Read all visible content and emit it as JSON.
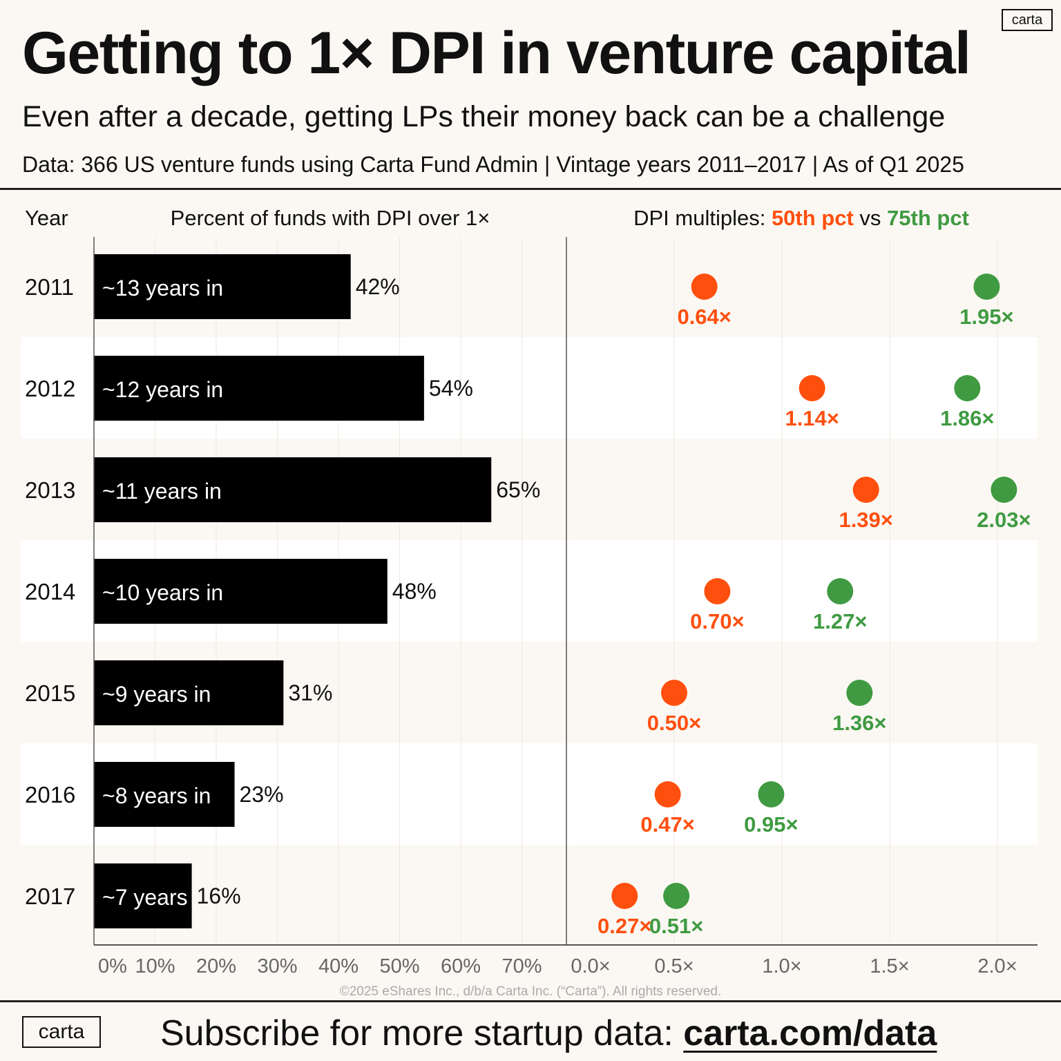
{
  "header": {
    "title": "Getting to 1× DPI in venture capital",
    "subtitle": "Even after a decade, getting LPs their money back can be a challenge",
    "dataline": "Data: 366 US venture funds using Carta Fund Admin  |  Vintage years 2011–2017  |  As of Q1 2025",
    "logo": "carta"
  },
  "footer": {
    "logo": "carta",
    "text": "Subscribe for more startup data: ",
    "link": "carta.com/data",
    "copyright": "©2025 eShares Inc., d/b/a Carta Inc. (“Carta”). All rights reserved."
  },
  "colors": {
    "p50": "#ff4f0f",
    "p75": "#3f9a41",
    "bar": "#000000",
    "band": "#ffffff"
  },
  "chart_data": [
    {
      "type": "bar",
      "orientation": "horizontal",
      "year_header": "Year",
      "title": "Percent of funds with DPI over 1×",
      "categories": [
        "2011",
        "2012",
        "2013",
        "2014",
        "2015",
        "2016",
        "2017"
      ],
      "bar_labels": [
        "~13 years in",
        "~12 years in",
        "~11 years in",
        "~10 years in",
        "~9 years in",
        "~8 years in",
        "~7 years"
      ],
      "values": [
        42,
        54,
        65,
        48,
        31,
        23,
        16
      ],
      "value_suffix": "%",
      "xlim": [
        0,
        75
      ],
      "ticks": [
        0,
        10,
        20,
        30,
        40,
        50,
        60,
        70
      ],
      "tick_labels": [
        "0%",
        "10%",
        "20%",
        "30%",
        "40%",
        "50%",
        "60%",
        "70%"
      ]
    },
    {
      "type": "scatter",
      "title_prefix": "DPI multiples: ",
      "title_mid": " vs ",
      "categories": [
        "2011",
        "2012",
        "2013",
        "2014",
        "2015",
        "2016",
        "2017"
      ],
      "series": [
        {
          "name": "50th pct",
          "values": [
            0.64,
            1.14,
            1.39,
            0.7,
            0.5,
            0.47,
            0.27
          ]
        },
        {
          "name": "75th pct",
          "values": [
            1.95,
            1.86,
            2.03,
            1.27,
            1.36,
            0.95,
            0.51
          ]
        }
      ],
      "xlim": [
        0,
        2.2
      ],
      "ticks": [
        0,
        0.5,
        1.0,
        1.5,
        2.0
      ],
      "tick_labels": [
        "0.0×",
        "0.5×",
        "1.0×",
        "1.5×",
        "2.0×"
      ]
    }
  ]
}
